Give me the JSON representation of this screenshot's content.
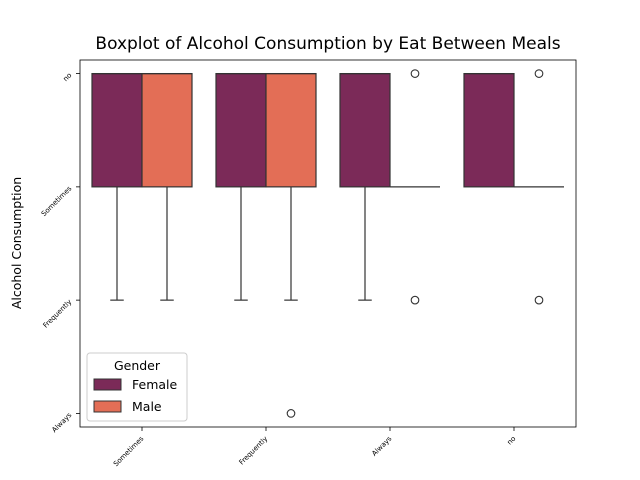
{
  "chart_data": {
    "type": "boxplot",
    "title": "Boxplot of Alcohol Consumption by Eat Between Meals",
    "xlabel": "",
    "ylabel": "Alcohol Consumption",
    "categories": [
      "Sometimes",
      "Frequently",
      "Always",
      "no"
    ],
    "y_categories": [
      "no",
      "Sometimes",
      "Frequently",
      "Always"
    ],
    "grid": false,
    "legend": {
      "title": "Gender",
      "placement": "lower-left"
    },
    "colors": {
      "Female": "#7b2a58",
      "Male": "#e36e56",
      "edge": "#333333"
    },
    "series": [
      {
        "name": "Female",
        "boxes": [
          {
            "whisker_low": 0,
            "q1": 0,
            "median": 0,
            "q3": 1,
            "whisker_high": 2,
            "outliers": []
          },
          {
            "whisker_low": 0,
            "q1": 0,
            "median": 0,
            "q3": 1,
            "whisker_high": 2,
            "outliers": []
          },
          {
            "whisker_low": 0,
            "q1": 0,
            "median": 0,
            "q3": 1,
            "whisker_high": 2,
            "outliers": []
          },
          {
            "whisker_low": 0,
            "q1": 0,
            "median": 0,
            "q3": 1,
            "whisker_high": 1,
            "outliers": []
          }
        ]
      },
      {
        "name": "Male",
        "boxes": [
          {
            "whisker_low": 0,
            "q1": 0,
            "median": 0,
            "q3": 1,
            "whisker_high": 2,
            "outliers": []
          },
          {
            "whisker_low": 0,
            "q1": 0,
            "median": 0,
            "q3": 1,
            "whisker_high": 2,
            "outliers": [
              3
            ]
          },
          {
            "whisker_low": 1,
            "q1": 1,
            "median": 1,
            "q3": 1,
            "whisker_high": 1,
            "outliers": [
              0,
              2
            ]
          },
          {
            "whisker_low": 1,
            "q1": 1,
            "median": 1,
            "q3": 1,
            "whisker_high": 1,
            "outliers": [
              0,
              2
            ]
          }
        ]
      }
    ]
  }
}
